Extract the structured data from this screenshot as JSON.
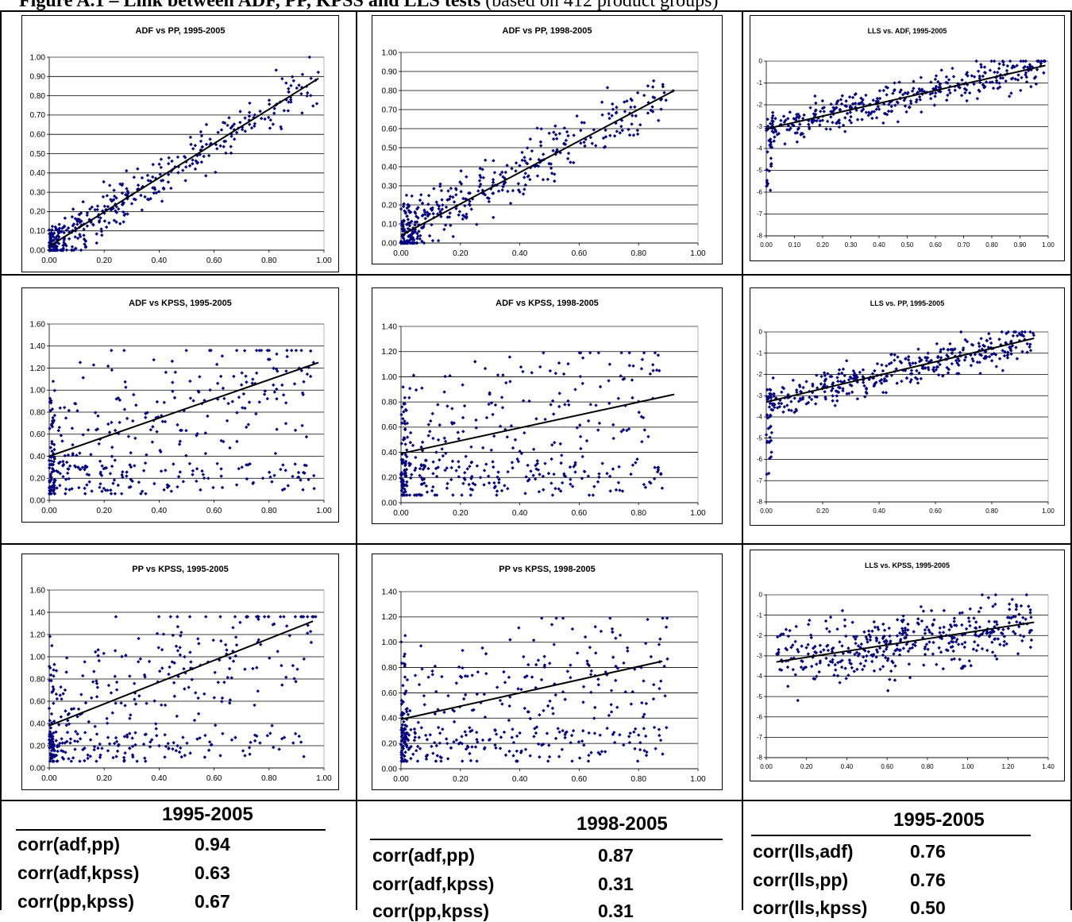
{
  "figure": {
    "title_bold": "Figure A.1 – Link between ADF, PP, KPSS and LLS tests",
    "title_rest": " (based on 412 product groups)"
  },
  "charts": [
    {
      "title": "ADF vs PP, 1995-2005",
      "xticks": [
        "0.00",
        "0.20",
        "0.40",
        "0.60",
        "0.80",
        "1.00"
      ],
      "yticks": [
        "0.00",
        "0.10",
        "0.20",
        "0.30",
        "0.40",
        "0.50",
        "0.60",
        "0.70",
        "0.80",
        "0.90",
        "1.00"
      ]
    },
    {
      "title": "ADF vs PP, 1998-2005",
      "xticks": [
        "0.00",
        "0.20",
        "0.40",
        "0.60",
        "0.80",
        "1.00"
      ],
      "yticks": [
        "0.00",
        "0.10",
        "0.20",
        "0.30",
        "0.40",
        "0.50",
        "0.60",
        "0.70",
        "0.80",
        "0.90",
        "1.00"
      ]
    },
    {
      "title": "LLS vs. ADF, 1995-2005",
      "xticks": [
        "0.00",
        "0.10",
        "0.20",
        "0.30",
        "0.40",
        "0.50",
        "0.60",
        "0.70",
        "0.80",
        "0.90",
        "1.00"
      ],
      "yticks": [
        "-8",
        "-7",
        "-6",
        "-5",
        "-4",
        "-3",
        "-2",
        "-1",
        "0"
      ]
    },
    {
      "title": "ADF vs KPSS, 1995-2005",
      "xticks": [
        "0.00",
        "0.20",
        "0.40",
        "0.60",
        "0.80",
        "1.00"
      ],
      "yticks": [
        "0.00",
        "0.20",
        "0.40",
        "0.60",
        "0.80",
        "1.00",
        "1.20",
        "1.40",
        "1.60"
      ]
    },
    {
      "title": "ADF vs KPSS, 1998-2005",
      "xticks": [
        "0.00",
        "0.20",
        "0.40",
        "0.60",
        "0.80",
        "1.00"
      ],
      "yticks": [
        "0.00",
        "0.20",
        "0.40",
        "0.60",
        "0.80",
        "1.00",
        "1.20",
        "1.40"
      ]
    },
    {
      "title": "LLS vs. PP, 1995-2005",
      "xticks": [
        "0.00",
        "0.20",
        "0.40",
        "0.60",
        "0.80",
        "1.00"
      ],
      "yticks": [
        "-8",
        "-7",
        "-6",
        "-5",
        "-4",
        "-3",
        "-2",
        "-1",
        "0"
      ]
    },
    {
      "title": "PP vs KPSS, 1995-2005",
      "xticks": [
        "0.00",
        "0.20",
        "0.40",
        "0.60",
        "0.80",
        "1.00"
      ],
      "yticks": [
        "0.00",
        "0.20",
        "0.40",
        "0.60",
        "0.80",
        "1.00",
        "1.20",
        "1.40",
        "1.60"
      ]
    },
    {
      "title": "PP vs KPSS, 1998-2005",
      "xticks": [
        "0.00",
        "0.20",
        "0.40",
        "0.60",
        "0.80",
        "1.00"
      ],
      "yticks": [
        "0.00",
        "0.20",
        "0.40",
        "0.60",
        "0.80",
        "1.00",
        "1.20",
        "1.40"
      ]
    },
    {
      "title": "LLS vs. KPSS, 1995-2005",
      "xticks": [
        "0.00",
        "0.20",
        "0.40",
        "0.60",
        "0.80",
        "1.00",
        "1.20",
        "1.40"
      ],
      "yticks": [
        "-8",
        "-7",
        "-6",
        "-5",
        "-4",
        "-3",
        "-2",
        "-1",
        "0"
      ]
    }
  ],
  "chart_data": [
    {
      "type": "scatter",
      "title": "ADF vs PP, 1995-2005",
      "xlim": [
        0,
        1
      ],
      "ylim": [
        0,
        1
      ],
      "n_points": 412,
      "trend": {
        "x": [
          0,
          0.98
        ],
        "y": [
          0.02,
          0.89
        ]
      },
      "marker_color": "#000080",
      "grid": "horizontal"
    },
    {
      "type": "scatter",
      "title": "ADF vs PP, 1998-2005",
      "xlim": [
        0,
        1
      ],
      "ylim": [
        0,
        1
      ],
      "n_points": 412,
      "trend": {
        "x": [
          0,
          0.92
        ],
        "y": [
          0.04,
          0.8
        ]
      },
      "marker_color": "#000080",
      "grid": "horizontal"
    },
    {
      "type": "scatter",
      "title": "LLS vs. ADF, 1995-2005",
      "xlim": [
        0,
        1
      ],
      "ylim": [
        -8,
        0
      ],
      "n_points": 412,
      "trend": {
        "x": [
          0,
          0.99
        ],
        "y": [
          -3.1,
          -0.2
        ]
      },
      "marker_color": "#000080",
      "grid": "horizontal"
    },
    {
      "type": "scatter",
      "title": "ADF vs KPSS, 1995-2005",
      "xlim": [
        0,
        1
      ],
      "ylim": [
        0,
        1.6
      ],
      "n_points": 412,
      "trend": {
        "x": [
          0,
          0.98
        ],
        "y": [
          0.4,
          1.25
        ]
      },
      "marker_color": "#000080",
      "grid": "horizontal"
    },
    {
      "type": "scatter",
      "title": "ADF vs KPSS, 1998-2005",
      "xlim": [
        0,
        1
      ],
      "ylim": [
        0,
        1.4
      ],
      "n_points": 412,
      "trend": {
        "x": [
          0,
          0.92
        ],
        "y": [
          0.39,
          0.86
        ]
      },
      "marker_color": "#000080",
      "grid": "horizontal"
    },
    {
      "type": "scatter",
      "title": "LLS vs. PP, 1995-2005",
      "xlim": [
        0,
        1
      ],
      "ylim": [
        -8,
        0
      ],
      "n_points": 412,
      "trend": {
        "x": [
          0,
          0.95
        ],
        "y": [
          -3.3,
          -0.3
        ]
      },
      "marker_color": "#000080",
      "grid": "horizontal"
    },
    {
      "type": "scatter",
      "title": "PP vs KPSS, 1995-2005",
      "xlim": [
        0,
        1
      ],
      "ylim": [
        0,
        1.6
      ],
      "n_points": 412,
      "trend": {
        "x": [
          0,
          0.96
        ],
        "y": [
          0.38,
          1.32
        ]
      },
      "marker_color": "#000080",
      "grid": "horizontal"
    },
    {
      "type": "scatter",
      "title": "PP vs KPSS, 1998-2005",
      "xlim": [
        0,
        1
      ],
      "ylim": [
        0,
        1.4
      ],
      "n_points": 412,
      "trend": {
        "x": [
          0,
          0.88
        ],
        "y": [
          0.39,
          0.85
        ]
      },
      "marker_color": "#000080",
      "grid": "horizontal"
    },
    {
      "type": "scatter",
      "title": "LLS vs. KPSS, 1995-2005",
      "xlim": [
        0,
        1.4
      ],
      "ylim": [
        -8,
        0
      ],
      "n_points": 412,
      "trend": {
        "x": [
          0.05,
          1.33
        ],
        "y": [
          -3.3,
          -1.35
        ]
      },
      "marker_color": "#000080",
      "grid": "horizontal"
    }
  ],
  "correlations": [
    {
      "period": "1995-2005",
      "rows": [
        {
          "label": "corr(adf,pp)",
          "value": "0.94"
        },
        {
          "label": "corr(adf,kpss)",
          "value": "0.63"
        },
        {
          "label": "corr(pp,kpss)",
          "value": "0.67"
        }
      ]
    },
    {
      "period": "1998-2005",
      "rows": [
        {
          "label": "corr(adf,pp)",
          "value": "0.87"
        },
        {
          "label": "corr(adf,kpss)",
          "value": "0.31"
        },
        {
          "label": "corr(pp,kpss)",
          "value": "0.31"
        }
      ]
    },
    {
      "period": "1995-2005",
      "rows": [
        {
          "label": "corr(lls,adf)",
          "value": "0.76"
        },
        {
          "label": "corr(lls,pp)",
          "value": "0.76"
        },
        {
          "label": "corr(lls,kpss)",
          "value": "0.50"
        }
      ]
    }
  ]
}
